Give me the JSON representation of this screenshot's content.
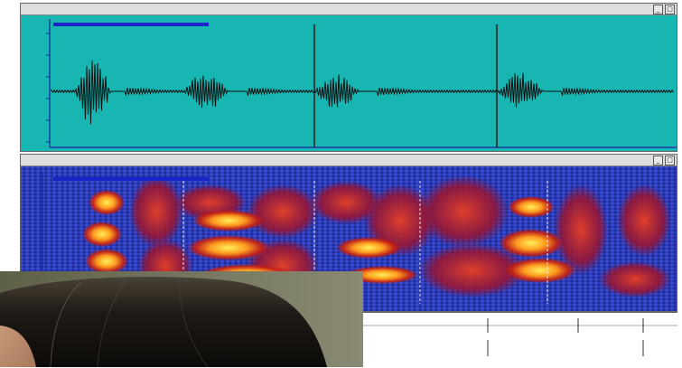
{
  "waveform_window": {
    "title": "",
    "minimize_glyph": "_",
    "maximize_glyph": "□",
    "close_glyph": "×"
  },
  "spectrogram_window": {
    "title": "",
    "minimize_glyph": "_",
    "maximize_glyph": "□",
    "close_glyph": "×"
  },
  "ruler": {
    "labels": []
  },
  "colors": {
    "waveform_background": "#17b6b2",
    "waveform_trace": "#111111",
    "selection": "#1a24c8",
    "spectrogram_low": "#2a3ab8",
    "spectrogram_mid": "#c81e10",
    "spectrogram_high": "#ffe23a"
  },
  "overlay": {
    "description_free": true
  }
}
